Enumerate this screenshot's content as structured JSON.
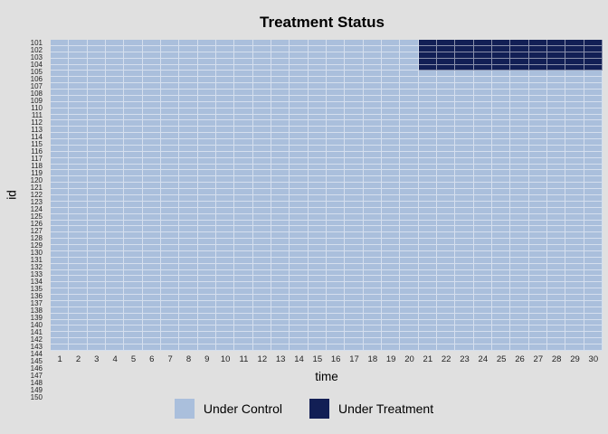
{
  "figure": {
    "title": "Treatment Status",
    "background_color": "#e0e0e0"
  },
  "x_axis": {
    "label": "time",
    "ticks": [
      1,
      2,
      3,
      4,
      5,
      6,
      7,
      8,
      9,
      10,
      11,
      12,
      13,
      14,
      15,
      16,
      17,
      18,
      19,
      20,
      21,
      22,
      23,
      24,
      25,
      26,
      27,
      28,
      29,
      30
    ]
  },
  "y_axis": {
    "label": "id",
    "ticks": [
      101,
      102,
      103,
      104,
      105,
      106,
      107,
      108,
      109,
      110,
      111,
      112,
      113,
      114,
      115,
      116,
      117,
      118,
      119,
      120,
      121,
      122,
      123,
      124,
      125,
      126,
      127,
      128,
      129,
      130,
      131,
      132,
      133,
      134,
      135,
      136,
      137,
      138,
      139,
      140,
      141,
      142,
      143,
      144,
      145,
      146,
      147,
      148,
      149,
      150
    ]
  },
  "legend": {
    "items": [
      {
        "label": "Under Control",
        "color": "#aabfdc"
      },
      {
        "label": "Under Treatment",
        "color": "#121f55"
      }
    ]
  },
  "chart_data": {
    "type": "heatmap",
    "title": "Treatment Status",
    "xlabel": "time",
    "ylabel": "id",
    "x": [
      1,
      2,
      3,
      4,
      5,
      6,
      7,
      8,
      9,
      10,
      11,
      12,
      13,
      14,
      15,
      16,
      17,
      18,
      19,
      20,
      21,
      22,
      23,
      24,
      25,
      26,
      27,
      28,
      29,
      30
    ],
    "ids": [
      101,
      102,
      103,
      104,
      105,
      106,
      107,
      108,
      109,
      110,
      111,
      112,
      113,
      114,
      115,
      116,
      117,
      118,
      119,
      120,
      121,
      122,
      123,
      124,
      125,
      126,
      127,
      128,
      129,
      130,
      131,
      132,
      133,
      134,
      135,
      136,
      137,
      138,
      139,
      140,
      141,
      142,
      143,
      144,
      145,
      146,
      147,
      148,
      149,
      150
    ],
    "states": [
      "Under Control",
      "Under Treatment"
    ],
    "colors": {
      "Under Control": "#aabfdc",
      "Under Treatment": "#121f55"
    },
    "default_state": "Under Control",
    "treatment_start": {
      "101": 21,
      "102": 21,
      "103": 21,
      "104": 21,
      "105": 21
    },
    "grid_line_color": "rgba(255,255,255,0.5)",
    "legend_position": "bottom"
  }
}
